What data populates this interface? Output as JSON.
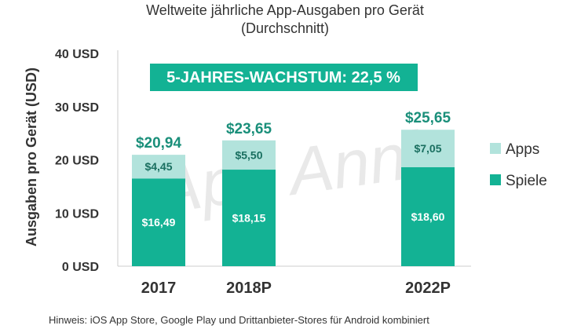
{
  "chart_data": {
    "type": "bar",
    "stacked": true,
    "title": "Weltweite jährliche App-Ausgaben pro Gerät",
    "subtitle": "(Durchschnitt)",
    "ylabel": "Ausgaben pro Gerät (USD)",
    "xlabel": "",
    "ylim": [
      0,
      40
    ],
    "yticks": [
      "0 USD",
      "10 USD",
      "20 USD",
      "30 USD",
      "40 USD"
    ],
    "ytick_values": [
      0,
      10,
      20,
      30,
      40
    ],
    "grid": false,
    "legend_position": "right",
    "categories": [
      "2017",
      "2018P",
      "2022P"
    ],
    "series": [
      {
        "name": "Spiele",
        "values": [
          16.49,
          18.15,
          18.6
        ],
        "labels": [
          "$16,49",
          "$18,15",
          "$18,60"
        ],
        "color": "#13b294"
      },
      {
        "name": "Apps",
        "values": [
          4.45,
          5.5,
          7.05
        ],
        "labels": [
          "$4,45",
          "$5,50",
          "$7,05"
        ],
        "color": "#b2e3dc"
      }
    ],
    "totals": [
      20.94,
      23.65,
      25.65
    ],
    "total_labels": [
      "$20,94",
      "$23,65",
      "$25,65"
    ],
    "annotation": "5-JAHRES-WACHSTUM: 22,5 %",
    "annotation_color": "#13b294",
    "watermark": "App Annie",
    "note": "Hinweis: iOS App Store, Google Play und Drittanbieter-Stores für Android kombiniert"
  }
}
